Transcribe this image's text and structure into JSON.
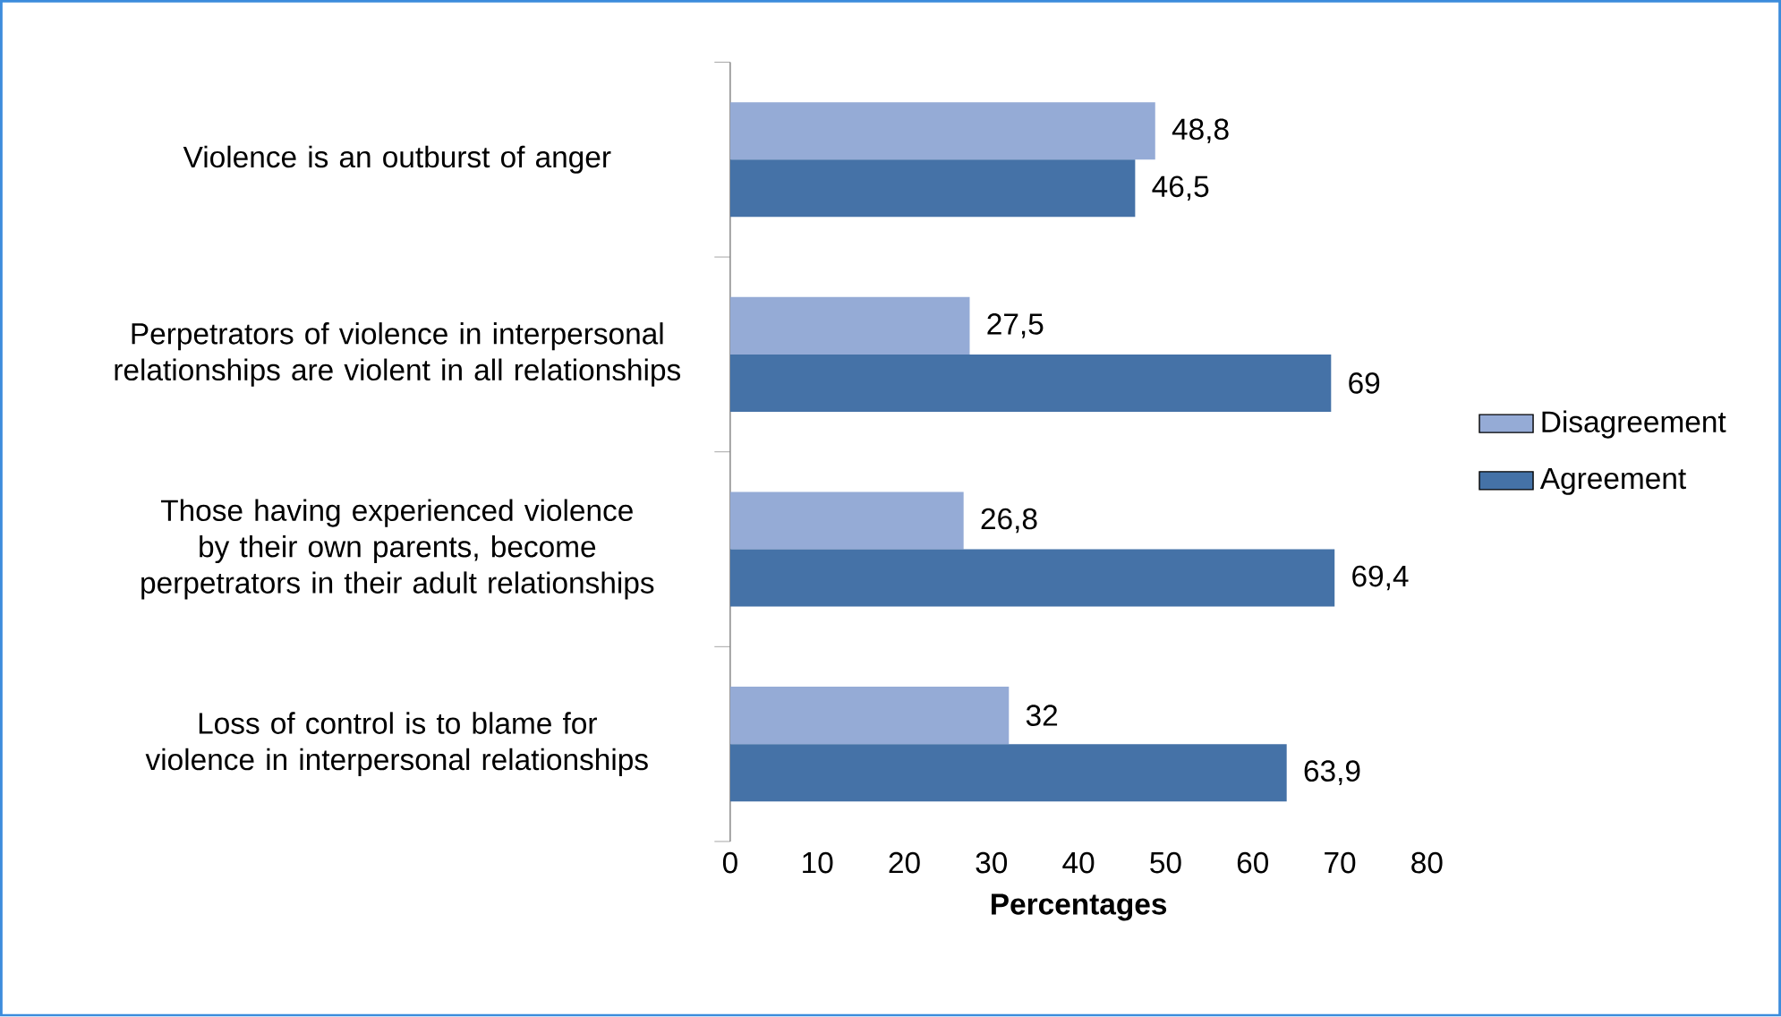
{
  "chart_data": {
    "type": "bar",
    "orientation": "horizontal",
    "xlabel": "Percentages",
    "categories": [
      "Violence is an outburst of anger",
      "Perpetrators of violence in interpersonal relationships are violent in all relationships",
      "Those having experienced violence by their own parents, become perpetrators in their adult relationships",
      "Loss of control is to blame for violence in interpersonal relationships"
    ],
    "series": [
      {
        "name": "Disagreement",
        "color": "#95abd6",
        "values": [
          48.8,
          27.5,
          26.8,
          32
        ],
        "value_labels": [
          "48,8",
          "27,5",
          "26,8",
          "32"
        ]
      },
      {
        "name": "Agreement",
        "color": "#4572a7",
        "values": [
          46.5,
          69,
          69.4,
          63.9
        ],
        "value_labels": [
          "46,5",
          "69",
          "69,4",
          "63,9"
        ]
      }
    ],
    "xlim": [
      0,
      80
    ],
    "xticks": [
      0,
      10,
      20,
      30,
      40,
      50,
      60,
      70,
      80
    ],
    "legend": "right"
  }
}
